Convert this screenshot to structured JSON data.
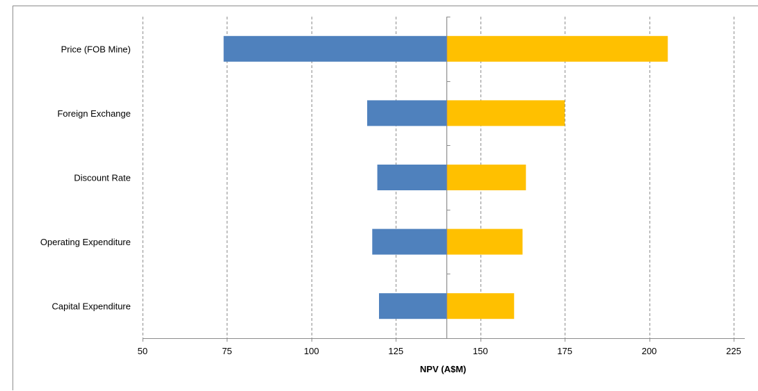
{
  "chart_data": {
    "type": "bar",
    "orientation": "horizontal",
    "variant": "tornado",
    "title": "",
    "xlabel": "NPV (A$M)",
    "ylabel": "",
    "xlim": [
      50,
      225
    ],
    "x_ticks": [
      50,
      75,
      100,
      125,
      150,
      175,
      200,
      225
    ],
    "base_value": 140,
    "grid": "vertical dashed",
    "categories": [
      "Price (FOB Mine)",
      "Foreign Exchange",
      "Discount Rate",
      "Operating Expenditure",
      "Capital Expenditure"
    ],
    "series": [
      {
        "values": [
          74,
          116.5,
          119.5,
          118,
          120
        ],
        "color": "#4f81bd"
      },
      {
        "values": [
          205.5,
          175,
          163.5,
          162.5,
          160
        ],
        "color": "#ffc000"
      }
    ],
    "legend": "none"
  },
  "colors": {
    "grid": "#8c8c8c",
    "axis": "#8c8c8c",
    "low": "#4f81bd",
    "high": "#ffc000"
  }
}
